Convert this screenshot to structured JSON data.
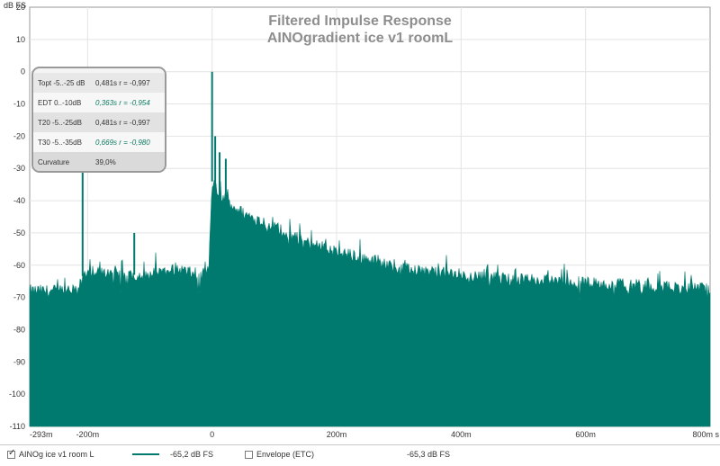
{
  "chart_data": {
    "type": "area",
    "title": "Filtered Impulse Response",
    "subtitle": "AINOgradient ice v1 roomL",
    "ylabel": "dB FS",
    "xunit": "s",
    "xlim": [
      -0.293,
      0.8
    ],
    "ylim": [
      -110,
      20
    ],
    "yticks": [
      20,
      10,
      0,
      -10,
      -20,
      -30,
      -40,
      -50,
      -60,
      -70,
      -80,
      -90,
      -100,
      -110
    ],
    "ytick_labels": [
      "20",
      "10",
      "0",
      "-10",
      "-20",
      "-30",
      "-40",
      "-50",
      "-60",
      "-70",
      "-80",
      "-90",
      "-100",
      "-110"
    ],
    "xticks": [
      -0.293,
      -0.2,
      0,
      0.2,
      0.4,
      0.6,
      0.8
    ],
    "xtick_labels": [
      "-293m",
      "-200m",
      "0",
      "200m",
      "400m",
      "600m",
      "800m s"
    ],
    "grid": true,
    "fill_baseline": -110,
    "series": [
      {
        "name": "AINOg ice v1 room L",
        "color": "#007a6e",
        "envelope": {
          "x": [
            -0.293,
            -0.27,
            -0.24,
            -0.215,
            -0.206,
            -0.2,
            -0.15,
            -0.1,
            -0.06,
            -0.04,
            -0.02,
            -0.005,
            0,
            0.01,
            0.03,
            0.05,
            0.1,
            0.15,
            0.2,
            0.25,
            0.3,
            0.35,
            0.4,
            0.45,
            0.5,
            0.6,
            0.7,
            0.8
          ],
          "y": [
            -68,
            -68,
            -68,
            -68,
            -62,
            -62,
            -63,
            -63,
            -61,
            -62,
            -64,
            -62,
            -34,
            -38,
            -41,
            -44,
            -48,
            -53,
            -56,
            -58,
            -61,
            -62,
            -63,
            -64,
            -64.5,
            -65.5,
            -66.5,
            -67.5
          ]
        },
        "peaks": [
          {
            "x": 0.0,
            "y": 0
          },
          {
            "x": -0.208,
            "y": -26
          },
          {
            "x": -0.125,
            "y": -50
          },
          {
            "x": 0.005,
            "y": -20
          },
          {
            "x": 0.012,
            "y": -25
          },
          {
            "x": 0.022,
            "y": -27
          }
        ]
      }
    ]
  },
  "info_box": {
    "rows": [
      {
        "label": "Topt -5..-25 dB",
        "value": "0,481s  r = -0,997"
      },
      {
        "label": "EDT  0..-10dB",
        "value": "0,363s  r = -0,954"
      },
      {
        "label": "T20 -5..-25dB",
        "value": "0,481s  r = -0,997"
      },
      {
        "label": "T30 -5..-35dB",
        "value": "0,669s  r = -0,980"
      },
      {
        "label": "Curvature",
        "value": "39,0%"
      }
    ]
  },
  "legend": {
    "item1_label": "AINOg ice v1 room L",
    "item1_checked": true,
    "item1_value": "-65,2 dB FS",
    "item2_label": "Envelope (ETC)",
    "item2_checked": false,
    "item2_value": "-65,3 dB FS"
  }
}
